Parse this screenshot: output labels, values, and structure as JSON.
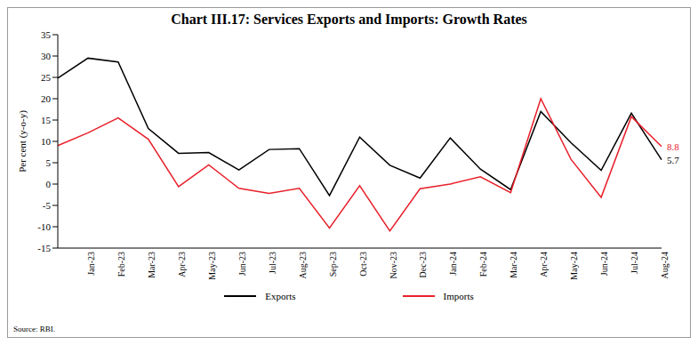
{
  "chart_data": {
    "type": "line",
    "title": "Chart III.17: Services Exports and Imports: Growth Rates",
    "y_label": "Per cent (y-o-y)",
    "source": "Source: RBI.",
    "categories": [
      null,
      "Jan-23",
      "Feb-23",
      "Mar-23",
      "Apr-23",
      "May-23",
      "Jun-23",
      "Jul-23",
      "Aug-23",
      "Sep-23",
      "Oct-23",
      "Nov-23",
      "Dec-23",
      "Jan-24",
      "Feb-24",
      "Mar-24",
      "Apr-24",
      "May-24",
      "Jun-24",
      "Jul-24",
      "Aug-24"
    ],
    "series": [
      {
        "name": "Exports",
        "color": "#000000",
        "values": [
          24.8,
          29.5,
          28.6,
          13,
          7.2,
          7.4,
          3.3,
          8.1,
          8.3,
          -2.7,
          11,
          4.4,
          1.4,
          10.8,
          3.5,
          -1.3,
          17,
          9.7,
          3.2,
          16.6,
          5.7
        ]
      },
      {
        "name": "Imports",
        "color": "#e8202a",
        "values": [
          9,
          12,
          15.5,
          10.5,
          -0.6,
          4.5,
          -1,
          -2.2,
          -1,
          -10.3,
          -0.4,
          -11,
          -1.1,
          0,
          1.7,
          -2,
          20,
          5.8,
          -3.1,
          15.8,
          8.8
        ]
      }
    ],
    "annotations": [
      {
        "text": "8.8",
        "series": "Imports",
        "x": "Aug-24"
      },
      {
        "text": "5.7",
        "series": "Exports",
        "x": "Aug-24"
      }
    ],
    "ylim": [
      -15,
      35
    ],
    "yticks": [
      -15,
      -10,
      -5,
      0,
      5,
      10,
      15,
      20,
      25,
      30,
      35
    ],
    "grid": false,
    "legend": "bottom"
  }
}
